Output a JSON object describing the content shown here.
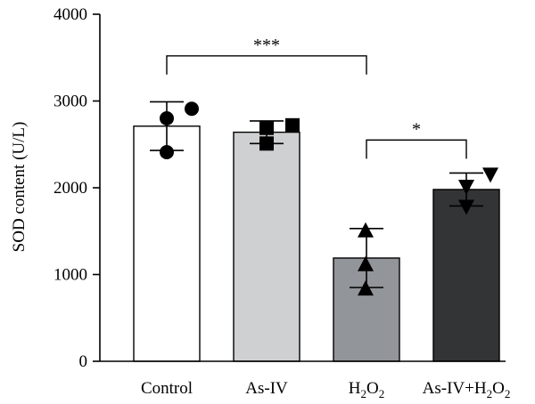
{
  "chart_data": {
    "type": "bar",
    "ylabel": "SOD content (U/L)",
    "xlabel": "",
    "ylim": [
      0,
      4000
    ],
    "yticks": [
      0,
      1000,
      2000,
      3000,
      4000
    ],
    "grid": false,
    "categories": [
      {
        "label": "Control",
        "value": 2710,
        "error": 280,
        "fill": "#ffffff",
        "marker": "circle",
        "points": [
          2410,
          2800,
          2910
        ]
      },
      {
        "label": "As-IV",
        "value": 2640,
        "error": 130,
        "fill": "#cfd0d2",
        "marker": "square",
        "points": [
          2510,
          2690,
          2720
        ]
      },
      {
        "label": "H2O2",
        "label_parts": {
          "base": "H",
          "sub1": "2",
          "mid": "O",
          "sub2": "2"
        },
        "value": 1190,
        "error": 340,
        "fill": "#929599",
        "marker": "triangle-up",
        "points": [
          840,
          1120,
          1510
        ]
      },
      {
        "label": "As-IV+H2O2",
        "label_parts": {
          "base": "As-IV+H",
          "sub1": "2",
          "mid": "O",
          "sub2": "2"
        },
        "value": 1980,
        "error": 190,
        "fill": "#333436",
        "marker": "triangle-down",
        "points": [
          1780,
          2010,
          2150
        ]
      }
    ],
    "significance": [
      {
        "from": 0,
        "to": 2,
        "label": "***",
        "level": 3520
      },
      {
        "from": 2,
        "to": 3,
        "label": "*",
        "level": 2550
      }
    ]
  }
}
